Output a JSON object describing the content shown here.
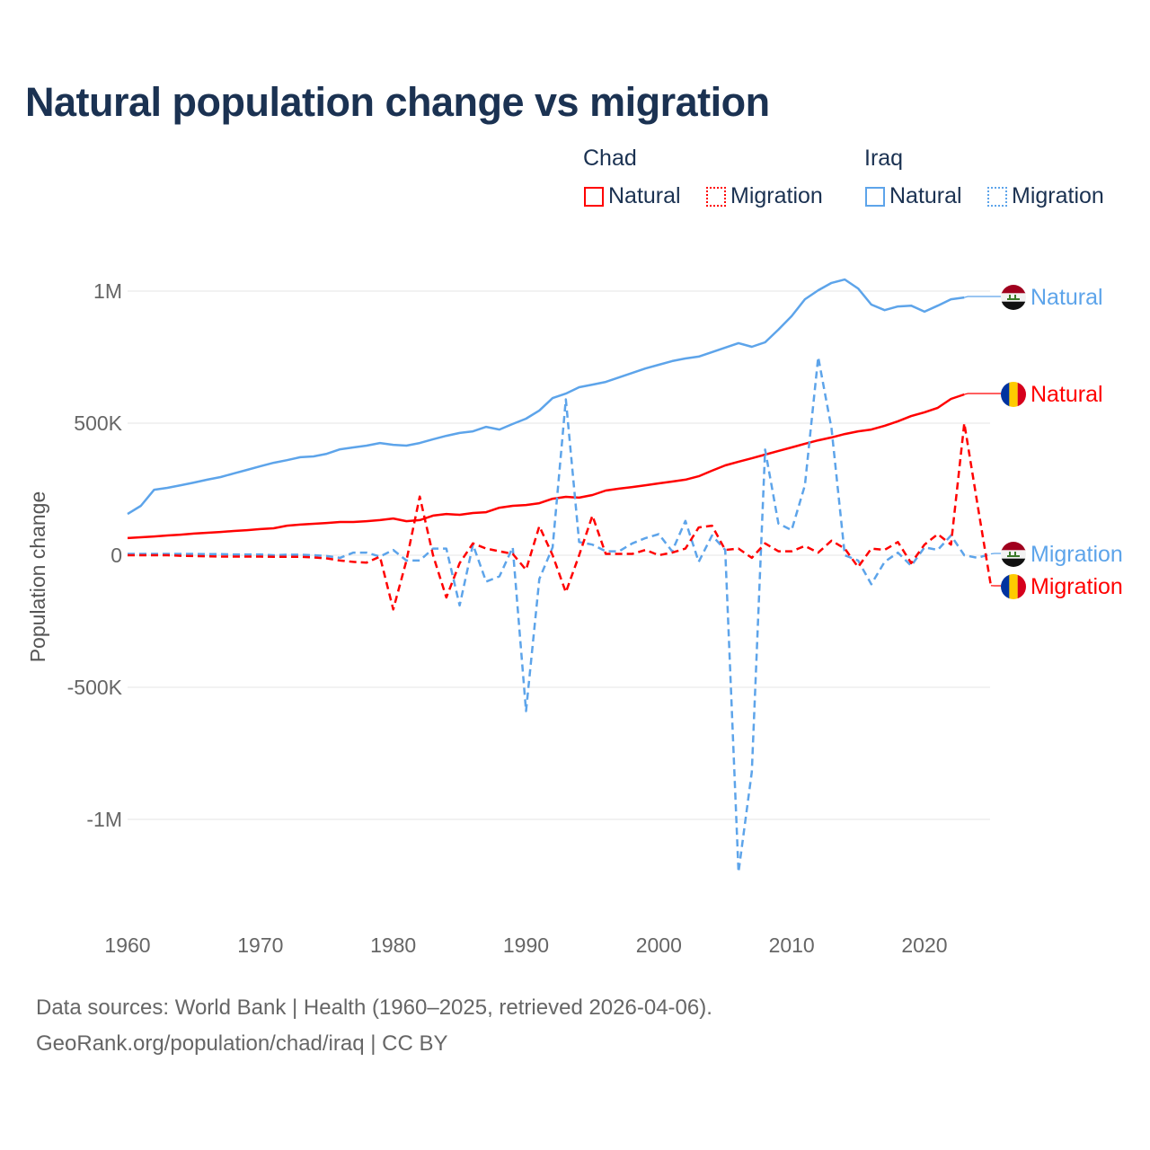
{
  "colors": {
    "chad": "#ff0000",
    "iraq": "#5da4ea",
    "title": "#1b3252",
    "grid": "#e6e6e6"
  },
  "chart_data": {
    "type": "line",
    "title": "Natural population change vs migration",
    "xlabel": "",
    "ylabel": "Population change",
    "xlim": [
      1960,
      2025
    ],
    "ylim": [
      -1200000,
      1050000
    ],
    "grid": true,
    "legend_placement": "top-right",
    "x_ticks": [
      1960,
      1970,
      1980,
      1990,
      2000,
      2010,
      2020
    ],
    "x_tick_labels": [
      "1960",
      "1970",
      "1980",
      "1990",
      "2000",
      "2010",
      "2020"
    ],
    "y_ticks": [
      1000000,
      500000,
      0,
      -500000,
      -1000000
    ],
    "y_tick_labels": [
      "1M",
      "500K",
      "0",
      "-500K",
      "-1M"
    ],
    "legend": {
      "groups": [
        {
          "name": "Chad",
          "items": [
            "Natural",
            "Migration"
          ]
        },
        {
          "name": "Iraq",
          "items": [
            "Natural",
            "Migration"
          ]
        }
      ]
    },
    "series": [
      {
        "name": "Iraq Natural",
        "country": "Iraq",
        "kind": "Natural",
        "style": "solid",
        "label": "Natural",
        "start_year": 1960,
        "values": [
          156000,
          187000,
          248000,
          255000,
          265000,
          275000,
          286000,
          296000,
          310000,
          323000,
          337000,
          350000,
          360000,
          371000,
          374000,
          384000,
          401000,
          408000,
          415000,
          425000,
          418000,
          415000,
          425000,
          439000,
          452000,
          463000,
          469000,
          486000,
          476000,
          497000,
          517000,
          548000,
          595000,
          612000,
          636000,
          646000,
          656000,
          673000,
          690000,
          707000,
          721000,
          735000,
          745000,
          752000,
          769000,
          786000,
          803000,
          789000,
          806000,
          854000,
          905000,
          969000,
          1003000,
          1031000,
          1044000,
          1010000,
          949000,
          928000,
          942000,
          945000,
          922000,
          945000,
          969000,
          976000
        ]
      },
      {
        "name": "Chad Natural",
        "country": "Chad",
        "kind": "Natural",
        "style": "solid",
        "label": "Natural",
        "start_year": 1960,
        "values": [
          65000,
          68000,
          71000,
          75000,
          78000,
          82000,
          85000,
          88000,
          92000,
          95000,
          99000,
          102000,
          112000,
          116000,
          119000,
          122000,
          126000,
          126000,
          129000,
          133000,
          139000,
          129000,
          133000,
          150000,
          156000,
          153000,
          160000,
          163000,
          180000,
          187000,
          190000,
          197000,
          214000,
          221000,
          218000,
          228000,
          245000,
          252000,
          258000,
          265000,
          272000,
          279000,
          286000,
          299000,
          320000,
          340000,
          354000,
          367000,
          381000,
          395000,
          408000,
          422000,
          435000,
          446000,
          459000,
          469000,
          476000,
          490000,
          507000,
          527000,
          541000,
          558000,
          592000,
          609000
        ]
      },
      {
        "name": "Iraq Migration",
        "country": "Iraq",
        "kind": "Migration",
        "style": "dashed",
        "label": "Migration",
        "start_year": 1960,
        "values": [
          5000,
          5000,
          5000,
          5000,
          5000,
          5000,
          4000,
          4000,
          3000,
          3000,
          3000,
          0,
          2000,
          2000,
          0,
          -3000,
          -10000,
          10000,
          10000,
          -5000,
          20000,
          -20000,
          -20000,
          25000,
          25000,
          -190000,
          40000,
          -100000,
          -80000,
          30000,
          -590000,
          -90000,
          30000,
          590000,
          50000,
          40000,
          15000,
          15000,
          45000,
          65000,
          80000,
          15000,
          130000,
          -25000,
          75000,
          20000,
          -1200000,
          -820000,
          400000,
          120000,
          95000,
          265000,
          750000,
          480000,
          0,
          -20000,
          -110000,
          -25000,
          10000,
          -40000,
          30000,
          20000,
          75000,
          0,
          -10000,
          5000
        ]
      },
      {
        "name": "Chad Migration",
        "country": "Chad",
        "kind": "Migration",
        "style": "dashed",
        "label": "Migration",
        "start_year": 1960,
        "values": [
          0,
          0,
          0,
          0,
          -2000,
          -3000,
          -4000,
          -5000,
          -5000,
          -5000,
          -5000,
          -6000,
          -6000,
          -6000,
          -8000,
          -12000,
          -20000,
          -25000,
          -28000,
          -5000,
          -205000,
          -20000,
          222000,
          0,
          -160000,
          -30000,
          45000,
          25000,
          15000,
          5000,
          -55000,
          110000,
          0,
          -140000,
          0,
          150000,
          5000,
          5000,
          5000,
          20000,
          0,
          10000,
          25000,
          105000,
          112000,
          20000,
          25000,
          -10000,
          45000,
          15000,
          15000,
          35000,
          10000,
          55000,
          25000,
          -45000,
          25000,
          20000,
          50000,
          -30000,
          40000,
          80000,
          40000,
          500000,
          190000,
          -115000
        ]
      }
    ]
  },
  "footer": {
    "line1": "Data sources: World Bank | Health (1960–2025, retrieved 2026-04-06).",
    "line2": "GeoRank.org/population/chad/iraq | CC BY"
  }
}
